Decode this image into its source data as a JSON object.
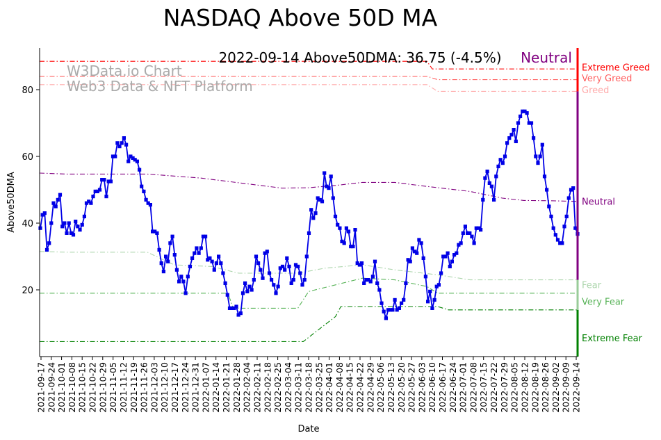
{
  "chart_data": {
    "type": "line",
    "title": "NASDAQ Above 50D MA",
    "headline": "2022-09-14 Above50DMA: 36.75 (-4.5%)",
    "status": "Neutral",
    "watermark": [
      "W3Data.io Chart",
      "Web3 Data & NFT Platform"
    ],
    "xlabel": "Date",
    "ylabel": "Above50DMA",
    "ylim": [
      0,
      92.5
    ],
    "yticks": [
      20,
      40,
      60,
      80
    ],
    "xticks": [
      "2021-09-17",
      "2021-09-24",
      "2021-10-01",
      "2021-10-08",
      "2021-10-15",
      "2021-10-22",
      "2021-10-29",
      "2021-11-05",
      "2021-11-12",
      "2021-11-19",
      "2021-11-26",
      "2021-12-03",
      "2021-12-10",
      "2021-12-17",
      "2021-12-24",
      "2021-12-31",
      "2022-01-07",
      "2022-01-14",
      "2022-01-21",
      "2022-01-28",
      "2022-02-04",
      "2022-02-11",
      "2022-02-18",
      "2022-02-25",
      "2022-03-04",
      "2022-03-11",
      "2022-03-18",
      "2022-03-25",
      "2022-04-01",
      "2022-04-08",
      "2022-04-15",
      "2022-04-22",
      "2022-04-29",
      "2022-05-06",
      "2022-05-13",
      "2022-05-20",
      "2022-05-27",
      "2022-06-03",
      "2022-06-10",
      "2022-06-17",
      "2022-06-24",
      "2022-07-01",
      "2022-07-08",
      "2022-07-15",
      "2022-07-22",
      "2022-07-29",
      "2022-08-05",
      "2022-08-12",
      "2022-08-19",
      "2022-08-26",
      "2022-09-02",
      "2022-09-09",
      "2022-09-14"
    ],
    "series": [
      {
        "name": "Above50DMA",
        "color": "#0000e6",
        "values": [
          38.5,
          42.5,
          43,
          32,
          34,
          40,
          46,
          45,
          47,
          48.5,
          39,
          40,
          37,
          40,
          37,
          36.5,
          40.5,
          39,
          38,
          39.5,
          42,
          46,
          46.5,
          46,
          48,
          49.5,
          49.5,
          50,
          53,
          53,
          48,
          52.5,
          52.5,
          60,
          60,
          64,
          63,
          64,
          65.5,
          63.5,
          58.5,
          60,
          59.5,
          59,
          58.5,
          56,
          51,
          49.5,
          47,
          46,
          45.5,
          37.5,
          37.5,
          37,
          32,
          28,
          25.5,
          30,
          28.5,
          34,
          36,
          30.5,
          26,
          22.5,
          24,
          22.5,
          19,
          24,
          27,
          29.5,
          31,
          32.5,
          31,
          32.5,
          36,
          36,
          29,
          29.5,
          28.5,
          26,
          28,
          30,
          28,
          25,
          22,
          18.5,
          14.5,
          14.5,
          14.5,
          15,
          12.5,
          13,
          19,
          22,
          19.5,
          21,
          20,
          23,
          30,
          28,
          26,
          23.5,
          31,
          31.5,
          25,
          23,
          21.5,
          19,
          21,
          26.5,
          27,
          26,
          29.5,
          27,
          22,
          23,
          27.5,
          27,
          25,
          21.5,
          23,
          30,
          37,
          44,
          41.5,
          43,
          47.5,
          47,
          46.5,
          55,
          51,
          50.5,
          54,
          47.5,
          42,
          39.5,
          38.5,
          34.5,
          34,
          38.5,
          37.5,
          33,
          33,
          38,
          28,
          27.5,
          28,
          22,
          23,
          23,
          22.5,
          24,
          28.5,
          22,
          20,
          16,
          13.5,
          11.5,
          14,
          14,
          14,
          17,
          14,
          14.5,
          16,
          17,
          22,
          29,
          28.5,
          32.5,
          31.5,
          31,
          35,
          34,
          29.5,
          24,
          16.5,
          19.5,
          14.5,
          17,
          21,
          21.5,
          25,
          30,
          30,
          31,
          27,
          28.5,
          30.5,
          31,
          33.5,
          34,
          37,
          39,
          37,
          37,
          36,
          34,
          38.5,
          38.5,
          38,
          47,
          53.5,
          55.5,
          52,
          51,
          47,
          54,
          57,
          59,
          58,
          60,
          64,
          65.5,
          66.5,
          68,
          64.5,
          70,
          72,
          73.5,
          73.5,
          73,
          70,
          70,
          65.5,
          60,
          58,
          60,
          63.5,
          54,
          50,
          45,
          42,
          38.5,
          36.5,
          35,
          34,
          34,
          39,
          42,
          47.5,
          50,
          50.5,
          38.5,
          36.75
        ]
      }
    ],
    "bands": [
      {
        "name": "Extreme Greed",
        "color": "#ff0000",
        "opacity": 1.0,
        "points": [
          [
            0,
            88.5
          ],
          [
            0.72,
            88.5
          ],
          [
            0.73,
            86.2
          ],
          [
            1,
            86.2
          ]
        ]
      },
      {
        "name": "Very Greed",
        "color": "#ff4444",
        "opacity": 0.85,
        "points": [
          [
            0,
            84
          ],
          [
            0.72,
            84
          ],
          [
            0.74,
            83
          ],
          [
            1,
            83
          ]
        ]
      },
      {
        "name": "Greed",
        "color": "#ff8888",
        "opacity": 0.7,
        "points": [
          [
            0,
            81.5
          ],
          [
            0.72,
            81.5
          ],
          [
            0.74,
            79.5
          ],
          [
            1,
            79.5
          ]
        ]
      },
      {
        "name": "Neutral",
        "color": "#800080",
        "opacity": 1.0,
        "points": [
          [
            0,
            55
          ],
          [
            0.05,
            54.7
          ],
          [
            0.2,
            54.7
          ],
          [
            0.3,
            53.5
          ],
          [
            0.4,
            51.5
          ],
          [
            0.45,
            50.5
          ],
          [
            0.5,
            50.6
          ],
          [
            0.55,
            51.3
          ],
          [
            0.6,
            52.2
          ],
          [
            0.66,
            52.2
          ],
          [
            0.72,
            51
          ],
          [
            0.8,
            49.5
          ],
          [
            0.86,
            47.5
          ],
          [
            0.9,
            46.8
          ],
          [
            0.95,
            46.7
          ],
          [
            1,
            46.5
          ]
        ]
      },
      {
        "name": "Fear",
        "color": "#99cc99",
        "opacity": 0.8,
        "points": [
          [
            0,
            31.5
          ],
          [
            0.05,
            31.3
          ],
          [
            0.2,
            31.3
          ],
          [
            0.25,
            27.5
          ],
          [
            0.32,
            27
          ],
          [
            0.37,
            25
          ],
          [
            0.48,
            25
          ],
          [
            0.53,
            26.5
          ],
          [
            0.6,
            27.5
          ],
          [
            0.66,
            26
          ],
          [
            0.74,
            24.5
          ],
          [
            0.8,
            23
          ],
          [
            1,
            23
          ]
        ]
      },
      {
        "name": "Very Fear",
        "color": "#44aa44",
        "opacity": 0.9,
        "points": [
          [
            0,
            19
          ],
          [
            0.35,
            19
          ],
          [
            0.36,
            14.5
          ],
          [
            0.48,
            14.5
          ],
          [
            0.5,
            19.5
          ],
          [
            0.55,
            21.5
          ],
          [
            0.6,
            23.5
          ],
          [
            0.66,
            23
          ],
          [
            0.72,
            21
          ],
          [
            0.74,
            19
          ],
          [
            1,
            19
          ]
        ]
      },
      {
        "name": "Extreme Fear",
        "color": "#008000",
        "opacity": 1.0,
        "points": [
          [
            0,
            4.5
          ],
          [
            0.49,
            4.5
          ],
          [
            0.51,
            7
          ],
          [
            0.55,
            12
          ],
          [
            0.56,
            15
          ],
          [
            0.74,
            15
          ],
          [
            0.76,
            14
          ],
          [
            1,
            14
          ]
        ]
      }
    ],
    "right_edge_segments": [
      {
        "from": 0,
        "to": 14,
        "color": "#008000"
      },
      {
        "from": 14,
        "to": 23,
        "color": "#99cc99"
      },
      {
        "from": 23,
        "to": 79.5,
        "color": "#800080"
      },
      {
        "from": 79.5,
        "to": 92.5,
        "color": "#ff0000"
      }
    ]
  }
}
